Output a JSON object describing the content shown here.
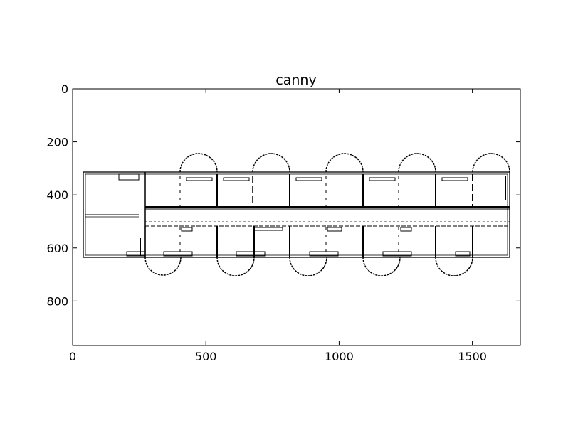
{
  "figure": {
    "title": "canny"
  },
  "axes": {
    "x_ticks": [
      "0",
      "500",
      "1000",
      "1500"
    ],
    "y_ticks": [
      "0",
      "200",
      "400",
      "600",
      "800"
    ],
    "xlim": [
      0,
      1680
    ],
    "ylim": [
      968,
      0
    ]
  },
  "image": {
    "description_kind": "edge-detection output of an architectural floor plan",
    "foreground_color": "#000000",
    "background_color": "#ffffff"
  }
}
